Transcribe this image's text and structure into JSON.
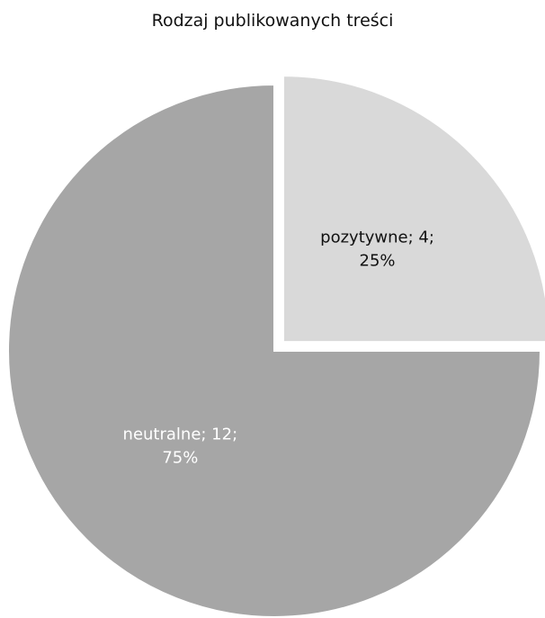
{
  "chart_data": {
    "type": "pie",
    "title": "Rodzaj publikowanych treści",
    "slices": [
      {
        "name": "pozytywne",
        "value": 4,
        "percent": "25%",
        "label_line1": "pozytywne; 4;",
        "label_line2": "25%",
        "color": "#d9d9d9",
        "exploded": true,
        "label_color": "#111111"
      },
      {
        "name": "neutralne",
        "value": 12,
        "percent": "75%",
        "label_line1": "neutralne; 12;",
        "label_line2": "75%",
        "color": "#a6a6a6",
        "exploded": false,
        "label_color": "#ffffff"
      }
    ],
    "legend": "none"
  }
}
